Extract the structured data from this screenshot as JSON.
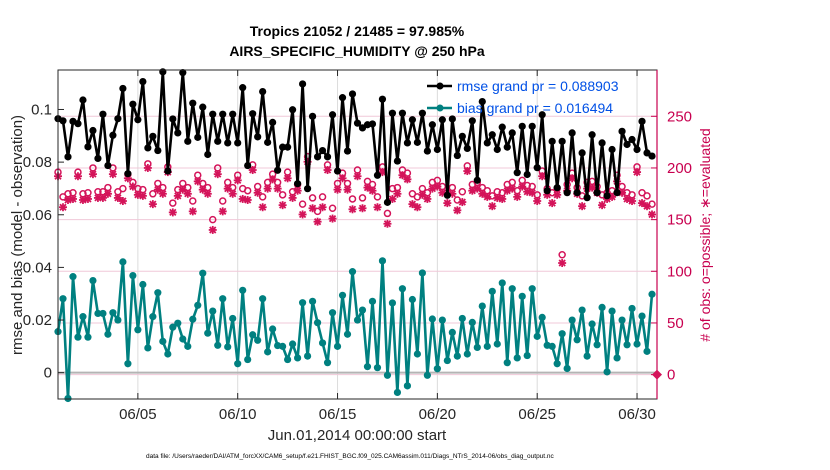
{
  "chart_data": {
    "type": "line",
    "title": "Tropics 21052 / 21485 = 97.985%",
    "subtitle": "AIRS_SPECIFIC_HUMIDITY @ 250 hPa",
    "xlabel": "Jun.01,2014 00:00:00 start",
    "ylabel": "rmse and bias (model - observation)",
    "ylabel_right": "# of obs: o=possible; ∗=evaluated",
    "footnote": "data file: /Users/raeder/DAI/ATM_forcXX/CAM6_setup/f.e21.FHIST_BGC.f09_025.CAM6assim.011/Diags_NTrS_2014-06/obs_diag_output.nc",
    "x_unit": "day of June 2014 (6-hourly)",
    "x_start": 1.0,
    "x_step": 0.25,
    "xlim": [
      1.0,
      31.0
    ],
    "ylim": [
      -0.01,
      0.115
    ],
    "ylim_right": [
      -23.6,
      294.8
    ],
    "x_ticks": [
      5,
      10,
      15,
      20,
      25,
      30
    ],
    "x_tick_labels": [
      "06/05",
      "06/10",
      "06/15",
      "06/20",
      "06/25",
      "06/30"
    ],
    "y_ticks": [
      0,
      0.02,
      0.04,
      0.06,
      0.08,
      0.1
    ],
    "y_tick_labels": [
      "0",
      "0.02",
      "0.04",
      "0.06",
      "0.08",
      "0.1"
    ],
    "y_ticks_right": [
      0,
      50,
      100,
      150,
      200,
      250
    ],
    "y_tick_labels_right": [
      "0",
      "50",
      "100",
      "150",
      "200",
      "250"
    ],
    "grid": true,
    "legend_placement": "top-right",
    "colors": {
      "rmse": "#000000",
      "bias": "#008080",
      "obs": "#d4145a",
      "axis_right": "#c8004f",
      "legend_text": "#0050e6",
      "zero_line": "#b4b4b4"
    },
    "series": [
      {
        "name": "rmse grand pr = 0.088903",
        "axis": "left",
        "values": [
          0.0965,
          0.0957,
          0.082,
          0.0955,
          0.0946,
          0.1036,
          0.0858,
          0.092,
          0.0814,
          0.0982,
          0.0787,
          0.0902,
          0.0965,
          0.108,
          0.0756,
          0.102,
          0.0961,
          0.1106,
          0.0854,
          0.0898,
          0.0844,
          0.1143,
          0.0766,
          0.0964,
          0.0911,
          0.114,
          0.0879,
          0.1024,
          0.0894,
          0.1009,
          0.0829,
          0.0982,
          0.0879,
          0.0982,
          0.0873,
          0.0982,
          0.0873,
          0.1083,
          0.0787,
          0.0984,
          0.0896,
          0.1068,
          0.0875,
          0.0951,
          0.0769,
          0.0857,
          0.0857,
          0.0999,
          0.0718,
          0.1097,
          0.0699,
          0.0974,
          0.082,
          0.0844,
          0.082,
          0.098,
          0.0766,
          0.1045,
          0.0842,
          0.1059,
          0.0948,
          0.093,
          0.0942,
          0.0945,
          0.075,
          0.1039,
          0.0647,
          0.0986,
          0.0804,
          0.0986,
          0.0873,
          0.0961,
          0.0875,
          0.0986,
          0.0842,
          0.0942,
          0.0848,
          0.0961,
          0.0674,
          0.0964,
          0.0825,
          0.0898,
          0.0852,
          0.0957,
          0.0731,
          0.103,
          0.0873,
          0.0904,
          0.0848,
          0.0933,
          0.0857,
          0.0911,
          0.076,
          0.0936,
          0.0753,
          0.0936,
          0.0779,
          0.098,
          0.0691,
          0.0879,
          0.0703,
          0.0879,
          0.0684,
          0.0911,
          0.0684,
          0.0835,
          0.0665,
          0.0904,
          0.0684,
          0.0873,
          0.0672,
          0.0848,
          0.0684,
          0.0917,
          0.0867,
          0.0886,
          0.0848,
          0.0955,
          0.0835,
          0.0823
        ]
      },
      {
        "name": "bias grand pr = 0.016494",
        "axis": "left",
        "values": [
          0.0156,
          0.0281,
          -0.0098,
          0.0365,
          0.0135,
          0.0213,
          0.0135,
          0.035,
          0.0225,
          0.0225,
          0.0146,
          0.0228,
          0.02,
          0.0421,
          0.0034,
          0.0369,
          0.0163,
          0.0335,
          0.0094,
          0.0213,
          0.0304,
          0.0119,
          0.0071,
          0.0173,
          0.0188,
          0.0128,
          0.01,
          0.0203,
          0.0256,
          0.0378,
          0.015,
          0.0234,
          0.0104,
          0.0281,
          0.0098,
          0.0206,
          0.0034,
          0.0313,
          0.005,
          0.0144,
          0.0123,
          0.0281,
          0.0079,
          0.0166,
          0.0103,
          0.01,
          0.005,
          0.0109,
          0.0056,
          0.0266,
          0.0063,
          0.0271,
          0.019,
          0.0113,
          0.0038,
          0.0228,
          0.01,
          0.0294,
          0.0146,
          0.0384,
          0.02,
          0.0238,
          0.0023,
          0.0271,
          0.0019,
          0.0425,
          -0.001,
          0.0265,
          -0.0075,
          0.0319,
          -0.005,
          0.0278,
          0.0071,
          0.0379,
          -0.001,
          0.0204,
          0.0015,
          0.02,
          0.0046,
          0.0153,
          0.0063,
          0.0206,
          0.0071,
          0.0191,
          0.0096,
          0.0253,
          0.01,
          0.0309,
          0.0109,
          0.0341,
          0.0038,
          0.0319,
          0.0056,
          0.029,
          0.0065,
          0.0319,
          0.0138,
          0.021,
          0.0104,
          0.01,
          0.0034,
          0.0148,
          0.0016,
          0.02,
          0.0125,
          0.0238,
          0.0063,
          0.0185,
          0.0106,
          0.0248,
          0.0003,
          0.0234,
          0.0056,
          0.02,
          0.0106,
          0.0244,
          0.0109,
          0.0215,
          0.0081,
          0.0298
        ]
      },
      {
        "name": "obs evaluated",
        "axis": "right",
        "marker": "*",
        "values": [
          192,
          162,
          169,
          170,
          192,
          169,
          170,
          194,
          171,
          171,
          175,
          194,
          171,
          168,
          190,
          182,
          174,
          173,
          200,
          165,
          179,
          175,
          196,
          157,
          173,
          179,
          175,
          158,
          187,
          179,
          175,
          140,
          194,
          158,
          180,
          175,
          188,
          170,
          169,
          198,
          176,
          162,
          180,
          189,
          180,
          164,
          190,
          171,
          178,
          155,
          206,
          161,
          148,
          162,
          198,
          151,
          179,
          190,
          179,
          160,
          192,
          161,
          181,
          178,
          162,
          196,
          146,
          170,
          175,
          193,
          189,
          165,
          162,
          174,
          170,
          180,
          182,
          176,
          166,
          175,
          159,
          167,
          197,
          178,
          180,
          175,
          172,
          163,
          171,
          170,
          178,
          180,
          172,
          182,
          177,
          176,
          168,
          192,
          174,
          166,
          174,
          108,
          178,
          190,
          175,
          163,
          180,
          181,
          176,
          164,
          170,
          172,
          187,
          176,
          170,
          168,
          196,
          166,
          163,
          155
        ]
      },
      {
        "name": "obs possible",
        "axis": "right",
        "marker": "o",
        "values": [
          196,
          172,
          175,
          176,
          196,
          175,
          176,
          200,
          177,
          177,
          181,
          200,
          177,
          180,
          194,
          186,
          180,
          179,
          204,
          175,
          185,
          181,
          201,
          166,
          179,
          185,
          181,
          168,
          193,
          185,
          181,
          150,
          200,
          168,
          186,
          181,
          193,
          180,
          178,
          203,
          182,
          172,
          186,
          194,
          186,
          174,
          196,
          177,
          184,
          165,
          211,
          171,
          158,
          172,
          203,
          161,
          185,
          195,
          185,
          170,
          198,
          171,
          187,
          184,
          172,
          201,
          156,
          180,
          181,
          198,
          195,
          175,
          172,
          180,
          176,
          186,
          188,
          182,
          176,
          181,
          169,
          177,
          202,
          184,
          186,
          181,
          178,
          173,
          177,
          176,
          184,
          186,
          178,
          188,
          183,
          182,
          174,
          197,
          180,
          176,
          180,
          116,
          184,
          195,
          181,
          173,
          186,
          187,
          182,
          174,
          176,
          178,
          193,
          182,
          176,
          174,
          201,
          176,
          173,
          165
        ]
      }
    ]
  }
}
